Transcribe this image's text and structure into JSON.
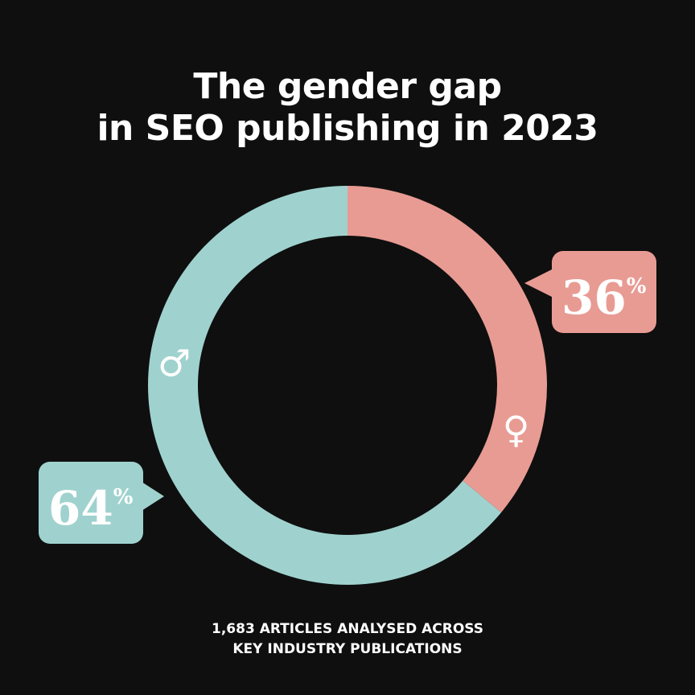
{
  "title": {
    "line1": "The gender gap",
    "line2": "in SEO publishing in 2023"
  },
  "footnote": {
    "line1": "1,683 ARTICLES ANALYSED ACROSS",
    "line2": "KEY INDUSTRY PUBLICATIONS"
  },
  "chart_data": {
    "type": "pie",
    "donut": true,
    "title": "The gender gap in SEO publishing in 2023",
    "slices": [
      {
        "label": "♀",
        "value": 36,
        "unit": "%",
        "color": "#e89b93",
        "icon": "female-symbol-icon"
      },
      {
        "label": "♂",
        "value": 64,
        "unit": "%",
        "color": "#9fd2ce",
        "icon": "male-symbol-icon"
      }
    ],
    "start_angle_deg": 0,
    "direction": "clockwise",
    "legend": "none"
  },
  "colors": {
    "background": "#0f0f0f",
    "text": "#ffffff"
  }
}
